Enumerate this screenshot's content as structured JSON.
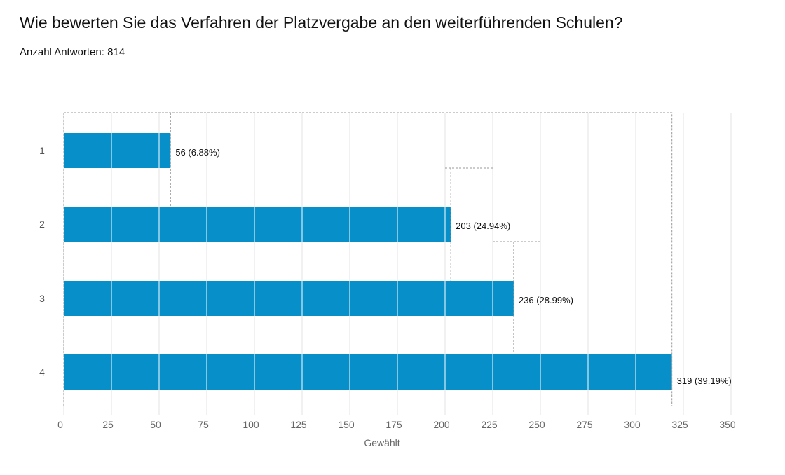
{
  "header": {
    "title": "Wie bewerten Sie das Verfahren der Platzvergabe an den weiterführenden Schulen?",
    "subtitle": "Anzahl Antworten: 814"
  },
  "colors": {
    "bar": "#068FC8",
    "grid": "#e3e3e3",
    "dashed": "#999999"
  },
  "chart_data": {
    "type": "bar",
    "orientation": "horizontal",
    "title": "Wie bewerten Sie das Verfahren der Platzvergabe an den weiterführenden Schulen?",
    "subtitle": "Anzahl Antworten: 814",
    "categories": [
      "1",
      "2",
      "3",
      "4"
    ],
    "values": [
      56,
      203,
      236,
      319
    ],
    "data_labels": [
      "56 (6.88%)",
      "203 (24.94%)",
      "236 (28.99%)",
      "319 (39.19%)"
    ],
    "xlabel": "Gewählt",
    "ylabel": "",
    "xlim": [
      0,
      350
    ],
    "xticks": [
      0,
      25,
      50,
      75,
      100,
      125,
      150,
      175,
      200,
      225,
      250,
      275,
      300,
      325,
      350
    ],
    "grid": true,
    "legend": "none"
  }
}
